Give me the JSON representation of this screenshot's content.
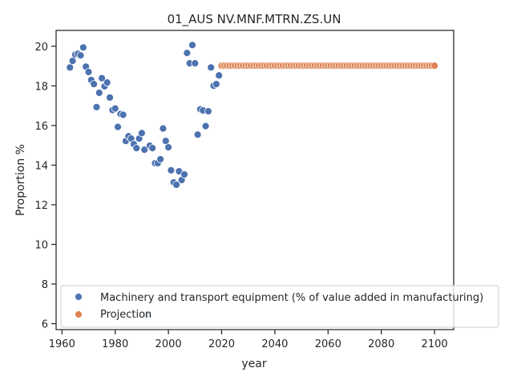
{
  "chart_data": {
    "type": "scatter",
    "title": "01_AUS NV.MNF.MTRN.ZS.UN",
    "xlabel": "year",
    "ylabel": "Proportion %",
    "xlim": [
      1957.8,
      2107.2
    ],
    "ylim": [
      5.7,
      20.8
    ],
    "xticks": [
      1960,
      1980,
      2000,
      2020,
      2040,
      2060,
      2080,
      2100
    ],
    "yticks": [
      6,
      8,
      10,
      12,
      14,
      16,
      18,
      20
    ],
    "grid": false,
    "legend": "lower right",
    "series": [
      {
        "name": "Machinery and transport equipment (% of value added in manufacturing)",
        "color": "#4c72b0",
        "points": [
          [
            1963,
            18.93
          ],
          [
            1964,
            19.26
          ],
          [
            1965,
            19.58
          ],
          [
            1966,
            19.62
          ],
          [
            1967,
            19.54
          ],
          [
            1968,
            19.94
          ],
          [
            1969,
            18.97
          ],
          [
            1970,
            18.7
          ],
          [
            1971,
            18.3
          ],
          [
            1972,
            18.09
          ],
          [
            1973,
            16.93
          ],
          [
            1974,
            17.65
          ],
          [
            1975,
            18.39
          ],
          [
            1976,
            17.98
          ],
          [
            1977,
            18.17
          ],
          [
            1978,
            17.41
          ],
          [
            1979,
            16.78
          ],
          [
            1980,
            16.86
          ],
          [
            1981,
            15.93
          ],
          [
            1982,
            16.58
          ],
          [
            1983,
            16.54
          ],
          [
            1984,
            15.22
          ],
          [
            1985,
            15.46
          ],
          [
            1986,
            15.34
          ],
          [
            1987,
            15.06
          ],
          [
            1988,
            14.86
          ],
          [
            1989,
            15.34
          ],
          [
            1990,
            15.62
          ],
          [
            1991,
            14.78
          ],
          [
            1992,
            6.44
          ],
          [
            1993,
            14.98
          ],
          [
            1994,
            14.86
          ],
          [
            1995,
            14.1
          ],
          [
            1996,
            14.1
          ],
          [
            1997,
            14.3
          ],
          [
            1998,
            15.85
          ],
          [
            1999,
            15.22
          ],
          [
            2000,
            14.9
          ],
          [
            2001,
            13.74
          ],
          [
            2002,
            13.13
          ],
          [
            2003,
            13.01
          ],
          [
            2004,
            13.69
          ],
          [
            2005,
            13.25
          ],
          [
            2006,
            13.53
          ],
          [
            2007,
            19.66
          ],
          [
            2008,
            19.14
          ],
          [
            2009,
            20.06
          ],
          [
            2010,
            19.14
          ],
          [
            2011,
            15.54
          ],
          [
            2012,
            16.82
          ],
          [
            2013,
            16.76
          ],
          [
            2014,
            15.97
          ],
          [
            2015,
            16.72
          ],
          [
            2016,
            18.93
          ],
          [
            2017,
            18.01
          ],
          [
            2018,
            18.09
          ],
          [
            2019,
            18.53
          ]
        ]
      },
      {
        "name": "Projection",
        "color": "#dd8452",
        "x_start": 2020,
        "x_end": 2100,
        "y": 19.02
      }
    ]
  }
}
